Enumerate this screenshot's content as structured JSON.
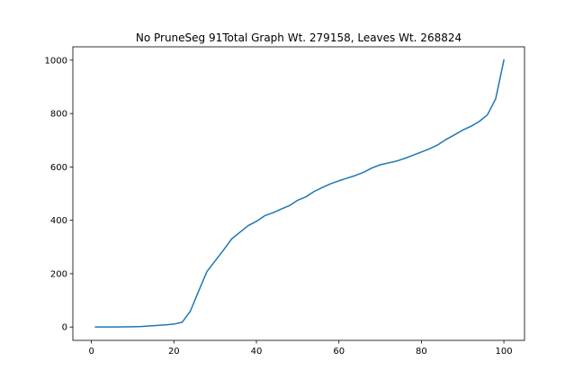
{
  "chart_data": {
    "type": "line",
    "title": "No PruneSeg 91Total Graph Wt. 279158, Leaves Wt. 268824",
    "xlabel": "",
    "ylabel": "",
    "xlim": [
      -4.5,
      105
    ],
    "ylim": [
      -50,
      1050
    ],
    "xticks": [
      0,
      20,
      40,
      60,
      80,
      100
    ],
    "yticks": [
      0,
      200,
      400,
      600,
      800,
      1000
    ],
    "xtick_labels": [
      "0",
      "20",
      "40",
      "60",
      "80",
      100
    ],
    "ytick_labels": [
      "0",
      "200",
      "400",
      "600",
      "800",
      "1000"
    ],
    "grid": false,
    "series_color": "#1f77b4",
    "series": [
      {
        "x": [
          1,
          5,
          10,
          12,
          14,
          16,
          18,
          20,
          22,
          24,
          26,
          28,
          30,
          32,
          34,
          36,
          38,
          40,
          42,
          44,
          46,
          48,
          50,
          52,
          54,
          56,
          58,
          60,
          62,
          64,
          66,
          68,
          70,
          72,
          74,
          76,
          78,
          80,
          82,
          84,
          86,
          88,
          90,
          92,
          94,
          96,
          98,
          100
        ],
        "y": [
          0,
          0,
          1,
          2,
          4,
          6,
          8,
          11,
          18,
          60,
          135,
          208,
          248,
          288,
          330,
          355,
          380,
          396,
          417,
          428,
          442,
          455,
          475,
          488,
          508,
          523,
          537,
          548,
          558,
          568,
          580,
          596,
          608,
          615,
          622,
          632,
          644,
          656,
          668,
          683,
          703,
          720,
          738,
          752,
          770,
          795,
          855,
          1000
        ]
      }
    ]
  }
}
